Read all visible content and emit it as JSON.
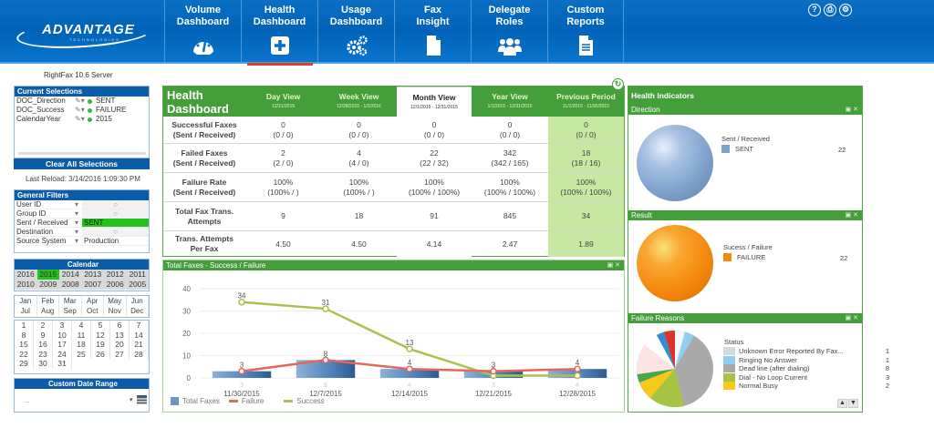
{
  "header": {
    "logo": {
      "name": "ADVANTAGE",
      "sub": "TECHNOLOGIES"
    },
    "nav": [
      {
        "label_line1": "Volume",
        "label_line2": "Dashboard",
        "icon": "speedometer-icon",
        "active": false
      },
      {
        "label_line1": "Health",
        "label_line2": "Dashboard",
        "icon": "plus-box-icon",
        "active": true
      },
      {
        "label_line1": "Usage",
        "label_line2": "Dashboard",
        "icon": "gears-icon",
        "active": false
      },
      {
        "label_line1": "Fax",
        "label_line2": "Insight",
        "icon": "document-icon",
        "active": false
      },
      {
        "label_line1": "Delegate",
        "label_line2": "Roles",
        "icon": "users-icon",
        "active": false
      },
      {
        "label_line1": "Custom",
        "label_line2": "Reports",
        "icon": "report-icon",
        "active": false
      }
    ],
    "top_icons": [
      {
        "name": "help-icon",
        "glyph": "?"
      },
      {
        "name": "print-icon",
        "glyph": "⎙"
      },
      {
        "name": "settings-icon",
        "glyph": "⚙"
      }
    ]
  },
  "left": {
    "server": "RightFax 10.6 Server",
    "current_selections": {
      "title": "Current Selections",
      "rows": [
        {
          "field": "DOC_Direction",
          "value": "SENT"
        },
        {
          "field": "DOC_Success",
          "value": "FAILURE"
        },
        {
          "field": "CalendarYear",
          "value": "2015"
        }
      ]
    },
    "clear_label": "Clear All Selections",
    "last_reload": "Last Reload: 3/14/2016 1:09:30 PM",
    "general_filters": {
      "title": "General Filters",
      "rows": [
        {
          "label": "User ID",
          "value": "○",
          "style": ""
        },
        {
          "label": "Group ID",
          "value": "○",
          "style": ""
        },
        {
          "label": "Sent / Received",
          "value": "SENT",
          "style": "green"
        },
        {
          "label": "Destination",
          "value": "○",
          "style": ""
        },
        {
          "label": "Source System",
          "value": "Production",
          "style": "text"
        }
      ]
    },
    "calendar": {
      "title": "Calendar",
      "years": [
        "2016",
        "2015",
        "2014",
        "2013",
        "2012",
        "2011",
        "2010",
        "2009",
        "2008",
        "2007",
        "2006",
        "2005"
      ],
      "selected_year": "2015",
      "months": [
        "Jan",
        "Feb",
        "Mar",
        "Apr",
        "May",
        "Jun",
        "Jul",
        "Aug",
        "Sep",
        "Oct",
        "Nov",
        "Dec"
      ],
      "days": [
        "1",
        "2",
        "3",
        "4",
        "5",
        "6",
        "7",
        "8",
        "9",
        "10",
        "11",
        "12",
        "13",
        "14",
        "15",
        "16",
        "17",
        "18",
        "19",
        "20",
        "21",
        "22",
        "23",
        "24",
        "25",
        "26",
        "27",
        "28",
        "29",
        "30",
        "31"
      ]
    },
    "custom_date_range": {
      "title": "Custom Date Range",
      "value": "..."
    }
  },
  "health": {
    "title_line1": "Health",
    "title_line2": "Dashboard",
    "columns": [
      {
        "label": "Day View",
        "dates": "12/31/2015"
      },
      {
        "label": "Week View",
        "dates": "12/28/2015 - 1/3/2016"
      },
      {
        "label": "Month View",
        "dates": "12/1/2015 - 12/31/2015"
      },
      {
        "label": "Year View",
        "dates": "1/1/2015 - 12/31/2015"
      },
      {
        "label": "Previous Period",
        "dates": "11/1/2015 - 11/30/2015"
      }
    ],
    "rows": [
      {
        "label_line1": "Successful Faxes",
        "label_line2": "(Sent / Received)",
        "values": [
          [
            "0",
            "(0 / 0)"
          ],
          [
            "0",
            "(0 / 0)"
          ],
          [
            "0",
            "(0 / 0)"
          ],
          [
            "0",
            "(0 / 0)"
          ],
          [
            "0",
            "(0 / 0)"
          ]
        ]
      },
      {
        "label_line1": "Failed Faxes",
        "label_line2": "(Sent / Received)",
        "values": [
          [
            "2",
            "(2 / 0)"
          ],
          [
            "4",
            "(4 / 0)"
          ],
          [
            "22",
            "(22 / 32)"
          ],
          [
            "342",
            "(342 / 165)"
          ],
          [
            "18",
            "(18 / 16)"
          ]
        ]
      },
      {
        "label_line1": "Failure Rate",
        "label_line2": "(Sent / Received)",
        "values": [
          [
            "100%",
            "(100% / )"
          ],
          [
            "100%",
            "(100% / )"
          ],
          [
            "100%",
            "(100% / 100%)"
          ],
          [
            "100%",
            "(100% / 100%)"
          ],
          [
            "100%",
            "(100% / 100%)"
          ]
        ]
      },
      {
        "label_line1": "Total Fax Trans.",
        "label_line2": "Attempts",
        "values": [
          [
            "9",
            ""
          ],
          [
            "18",
            ""
          ],
          [
            "91",
            ""
          ],
          [
            "845",
            ""
          ],
          [
            "34",
            ""
          ]
        ]
      },
      {
        "label_line1": "Trans. Attempts",
        "label_line2": "Per Fax",
        "values": [
          [
            "4.50",
            ""
          ],
          [
            "4.50",
            ""
          ],
          [
            "4.14",
            ""
          ],
          [
            "2.47",
            ""
          ],
          [
            "1.89",
            ""
          ]
        ]
      }
    ]
  },
  "chart_title": "Total Faxes - Success / Failure",
  "chart_data": {
    "type": "bar",
    "title": "Total Faxes - Success / Failure",
    "categories": [
      "11/30/2015",
      "12/7/2015",
      "12/14/2015",
      "12/21/2015",
      "12/28/2015"
    ],
    "series": [
      {
        "name": "Total Faxes",
        "type": "bar",
        "values": [
          3,
          8,
          4,
          3,
          4
        ],
        "color": "#4f81bd"
      },
      {
        "name": "Failure",
        "type": "line",
        "values": [
          3,
          8,
          4,
          3,
          4
        ],
        "color": "#e5675a"
      },
      {
        "name": "Success",
        "type": "line",
        "values": [
          34,
          31,
          13,
          1,
          1
        ],
        "color": "#a9c24f"
      }
    ],
    "yticks": [
      0,
      10,
      20,
      30,
      40
    ],
    "ylim": [
      0,
      40
    ],
    "grid": true,
    "legend_position": "bottom-left",
    "xlabel": "",
    "ylabel": ""
  },
  "indicators": {
    "title": "Health Indicators",
    "direction": {
      "title": "Direction",
      "legend_title": "Sent / Received",
      "items": [
        {
          "label": "SENT",
          "value": "22",
          "color": "#7fa2cc"
        }
      ]
    },
    "result": {
      "title": "Result",
      "legend_title": "Sucess / Failure",
      "items": [
        {
          "label": "FAILURE",
          "value": "22",
          "color": "#f5880e"
        }
      ]
    },
    "failure_reasons": {
      "title": "Failure Reasons",
      "legend_title": "Status",
      "items": [
        {
          "label": "Unknown Error Reported By Fax...",
          "value": "1",
          "color": "#d4d9e2"
        },
        {
          "label": "Ringing No Answer",
          "value": "1",
          "color": "#8fcff0"
        },
        {
          "label": "Dead line (after dialing)",
          "value": "8",
          "color": "#a9a9a9"
        },
        {
          "label": "Dial - No Loop Current",
          "value": "3",
          "color": "#a6c442"
        },
        {
          "label": "Normal Busy",
          "value": "2",
          "color": "#f8c91a"
        }
      ]
    }
  }
}
